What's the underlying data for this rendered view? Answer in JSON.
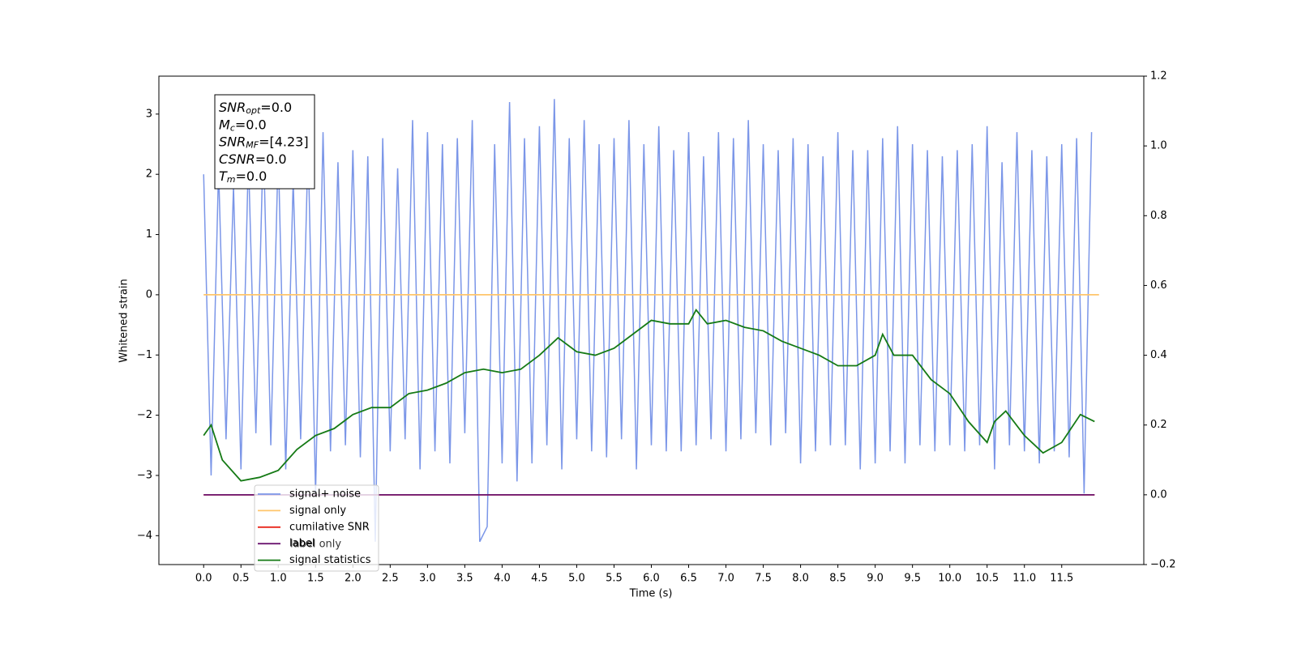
{
  "chart_data": {
    "type": "line",
    "xlabel": "Time (s)",
    "ylabel": "Whitened strain",
    "xlim": [
      -0.6,
      12.6
    ],
    "ylim": [
      -4.48,
      3.63
    ],
    "y2lim": [
      -0.2,
      1.2
    ],
    "xticks": [
      {
        "value": 0,
        "label": "0.0"
      },
      0.5,
      {
        "value": 1,
        "label": "1.0"
      },
      1.5,
      {
        "value": 2,
        "label": "2.0"
      },
      2.5,
      {
        "value": 3,
        "label": "3.0"
      },
      3.5,
      {
        "value": 4,
        "label": "4.0"
      },
      4.5,
      {
        "value": 5,
        "label": "5.0"
      },
      5.5,
      {
        "value": 6,
        "label": "6.0"
      },
      6.5,
      {
        "value": 7,
        "label": "7.0"
      },
      7.5,
      {
        "value": 8,
        "label": "8.0"
      },
      8.5,
      {
        "value": 9,
        "label": "9.0"
      },
      9.5,
      {
        "value": 10,
        "label": "10.0"
      },
      10.5,
      {
        "value": 11,
        "label": "11.0"
      },
      11.5
    ],
    "yticks": [
      {
        "value": -4,
        "label": "−4"
      },
      {
        "value": -3,
        "label": "−3"
      },
      {
        "value": -2,
        "label": "−2"
      },
      {
        "value": -1,
        "label": "−1"
      },
      0,
      1,
      2,
      3
    ],
    "y2ticks": [
      {
        "value": -0.2,
        "label": "−0.2"
      },
      {
        "value": 0,
        "label": "0.0"
      },
      0.2,
      0.4,
      0.6,
      0.8,
      {
        "value": 1,
        "label": "1.0"
      },
      1.2
    ],
    "legend": "lower left",
    "series": [
      {
        "name": "signal+ noise",
        "color": "#7b96e8",
        "x": [
          0,
          0.1,
          0.2,
          0.3,
          0.4,
          0.5,
          0.6,
          0.7,
          0.8,
          0.9,
          1,
          1.1,
          1.2,
          1.3,
          1.4,
          1.5,
          1.6,
          1.7,
          1.8,
          1.9,
          2,
          2.1,
          2.2,
          2.3,
          2.4,
          2.5,
          2.6,
          2.7,
          2.8,
          2.9,
          3,
          3.1,
          3.2,
          3.3,
          3.4,
          3.5,
          3.6,
          3.7,
          3.8,
          3.9,
          4,
          4.1,
          4.2,
          4.3,
          4.4,
          4.5,
          4.6,
          4.7,
          4.8,
          4.9,
          5,
          5.1,
          5.2,
          5.3,
          5.4,
          5.5,
          5.6,
          5.7,
          5.8,
          5.9,
          6,
          6.1,
          6.2,
          6.3,
          6.4,
          6.5,
          6.6,
          6.7,
          6.8,
          6.9,
          7,
          7.1,
          7.2,
          7.3,
          7.4,
          7.5,
          7.6,
          7.7,
          7.8,
          7.9,
          8,
          8.1,
          8.2,
          8.3,
          8.4,
          8.5,
          8.6,
          8.7,
          8.8,
          8.9,
          9,
          9.1,
          9.2,
          9.3,
          9.4,
          9.5,
          9.6,
          9.7,
          9.8,
          9.9,
          10,
          10.1,
          10.2,
          10.3,
          10.4,
          10.5,
          10.6,
          10.7,
          10.8,
          10.9,
          11,
          11.1,
          11.2,
          11.3,
          11.4,
          11.5,
          11.6,
          11.7,
          11.8,
          11.9
        ],
        "values": [
          2.0,
          -3.0,
          2.1,
          -2.4,
          1.8,
          -2.9,
          2.3,
          -2.3,
          2.6,
          -2.5,
          2.4,
          -2.9,
          1.9,
          -2.4,
          2.5,
          -3.3,
          2.7,
          -2.6,
          2.2,
          -2.5,
          2.4,
          -2.7,
          2.3,
          -4.1,
          2.6,
          -2.6,
          2.1,
          -2.4,
          2.9,
          -2.9,
          2.7,
          -2.6,
          2.5,
          -2.8,
          2.6,
          -2.3,
          2.9,
          -4.1,
          -3.85,
          2.5,
          -2.8,
          3.2,
          -3.1,
          2.6,
          -2.8,
          2.8,
          -2.5,
          3.25,
          -2.9,
          2.6,
          -2.4,
          2.9,
          -2.6,
          2.5,
          -2.7,
          2.6,
          -2.4,
          2.9,
          -2.9,
          2.5,
          -2.5,
          2.8,
          -2.6,
          2.4,
          -2.6,
          2.7,
          -2.5,
          2.3,
          -2.4,
          2.7,
          -2.6,
          2.6,
          -2.4,
          2.9,
          -2.3,
          2.5,
          -2.5,
          2.4,
          -2.3,
          2.6,
          -2.8,
          2.5,
          -2.6,
          2.3,
          -2.5,
          2.7,
          -2.5,
          2.4,
          -2.9,
          2.4,
          -2.8,
          2.6,
          -2.6,
          2.8,
          -2.8,
          2.5,
          -2.5,
          2.4,
          -2.6,
          2.3,
          -2.5,
          2.4,
          -2.6,
          2.5,
          -2.5,
          2.8,
          -2.9,
          2.2,
          -2.5,
          2.7,
          -2.6,
          2.4,
          -2.8,
          2.3,
          -2.6,
          2.5,
          -2.7,
          2.6,
          -3.3,
          2.7
        ]
      },
      {
        "name": "signal only",
        "color": "#ffc56b",
        "x": [
          0,
          12
        ],
        "values": [
          0,
          0
        ]
      },
      {
        "name": "cumilative SNR",
        "color": "#e8261c",
        "axis": "y2",
        "x": [
          0,
          11.94
        ],
        "values": [
          0,
          0
        ]
      },
      {
        "name": "label",
        "color": "#6c1670",
        "axis": "y2",
        "x": [
          0,
          11.94
        ],
        "values": [
          0,
          0
        ]
      },
      {
        "name": "signal statistics",
        "color": "#157a15",
        "axis": "y2",
        "x": [
          0,
          0.1,
          0.25,
          0.5,
          0.75,
          1,
          1.25,
          1.5,
          1.75,
          2,
          2.25,
          2.5,
          2.75,
          3,
          3.25,
          3.5,
          3.75,
          4,
          4.25,
          4.5,
          4.75,
          5,
          5.25,
          5.5,
          5.75,
          6,
          6.25,
          6.5,
          6.6,
          6.75,
          7,
          7.25,
          7.5,
          7.75,
          8,
          8.25,
          8.5,
          8.75,
          9,
          9.1,
          9.25,
          9.5,
          9.75,
          10,
          10.25,
          10.5,
          10.6,
          10.75,
          11,
          11.25,
          11.5,
          11.75,
          11.94
        ],
        "values": [
          0.17,
          0.2,
          0.1,
          0.04,
          0.05,
          0.07,
          0.13,
          0.17,
          0.19,
          0.23,
          0.25,
          0.25,
          0.29,
          0.3,
          0.32,
          0.35,
          0.36,
          0.35,
          0.36,
          0.4,
          0.45,
          0.41,
          0.4,
          0.42,
          0.46,
          0.5,
          0.49,
          0.49,
          0.53,
          0.49,
          0.5,
          0.48,
          0.47,
          0.44,
          0.42,
          0.4,
          0.37,
          0.37,
          0.4,
          0.46,
          0.4,
          0.4,
          0.33,
          0.29,
          0.21,
          0.15,
          0.21,
          0.24,
          0.17,
          0.12,
          0.15,
          0.23,
          0.21
        ]
      }
    ],
    "annotations": [
      {
        "text": "label only"
      }
    ],
    "textbox": [
      {
        "base": "SNR",
        "sub": "opt",
        "rest": "=0.0"
      },
      {
        "base": "M",
        "sub": "c",
        "rest": "=0.0"
      },
      {
        "base": "SNR",
        "sub": "MF",
        "rest": "=[4.23]"
      },
      {
        "base": "CSNR",
        "rest": "=0.0"
      },
      {
        "base": "T",
        "sub": "m",
        "rest": "=0.0"
      }
    ]
  }
}
